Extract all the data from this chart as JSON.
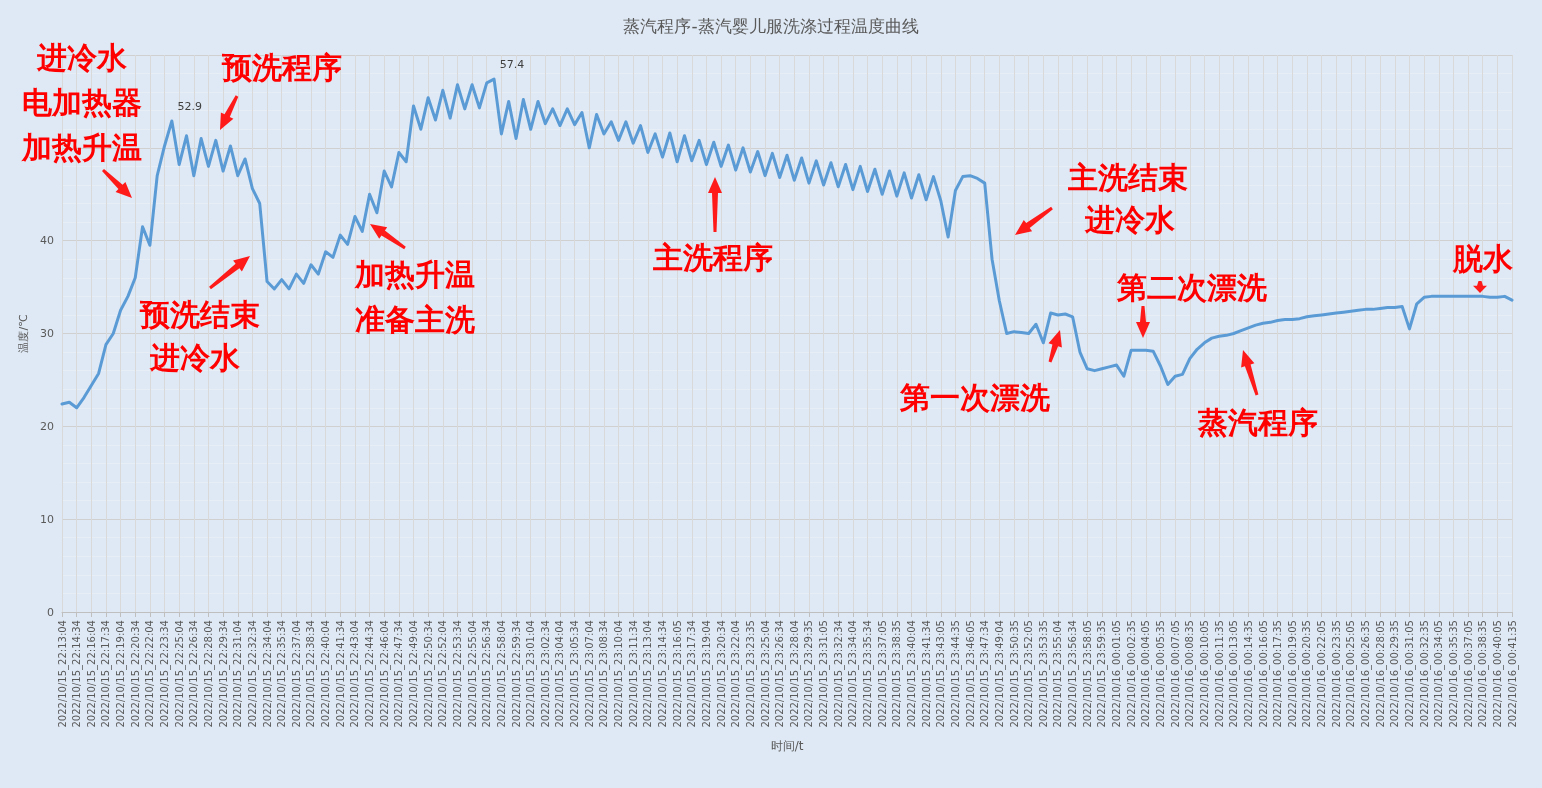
{
  "chart_data": {
    "type": "line",
    "title": "蒸汽程序-蒸汽婴儿服洗涤过程温度曲线",
    "xlabel": "时间/t",
    "ylabel": "温度/℃",
    "categories": [
      "2022/10/15_22:13:04",
      null,
      "2022/10/15_22:14:34",
      null,
      "2022/10/15_22:16:04",
      null,
      "2022/10/15_22:17:34",
      null,
      "2022/10/15_22:19:04",
      null,
      "2022/10/15_22:20:34",
      null,
      "2022/10/15_22:22:04",
      null,
      "2022/10/15_22:23:34",
      null,
      "2022/10/15_22:25:04",
      null,
      "2022/10/15_22:26:34",
      null,
      "2022/10/15_22:28:04",
      null,
      "2022/10/15_22:29:34",
      null,
      "2022/10/15_22:31:04",
      null,
      "2022/10/15_22:32:34",
      null,
      "2022/10/15_22:34:04",
      null,
      "2022/10/15_22:35:34",
      null,
      "2022/10/15_22:37:04",
      null,
      "2022/10/15_22:38:34",
      null,
      "2022/10/15_22:40:04",
      null,
      "2022/10/15_22:41:34",
      null,
      "2022/10/15_22:43:04",
      null,
      "2022/10/15_22:44:34",
      null,
      "2022/10/15_22:46:04",
      null,
      "2022/10/15_22:47:34",
      null,
      "2022/10/15_22:49:04",
      null,
      "2022/10/15_22:50:34",
      null,
      "2022/10/15_22:52:04",
      null,
      "2022/10/15_22:53:34",
      null,
      "2022/10/15_22:55:04",
      null,
      "2022/10/15_22:56:34",
      null,
      "2022/10/15_22:58:04",
      null,
      "2022/10/15_22:59:34",
      null,
      "2022/10/15_23:01:04",
      null,
      "2022/10/15_23:02:34",
      null,
      "2022/10/15_23:04:04",
      null,
      "2022/10/15_23:05:34",
      null,
      "2022/10/15_23:07:04",
      null,
      "2022/10/15_23:08:34",
      null,
      "2022/10/15_23:10:04",
      null,
      "2022/10/15_23:11:34",
      null,
      "2022/10/15_23:13:04",
      null,
      "2022/10/15_23:14:34",
      null,
      "2022/10/15_23:16:05",
      null,
      "2022/10/15_23:17:34",
      null,
      "2022/10/15_23:19:04",
      null,
      "2022/10/15_23:20:34",
      null,
      "2022/10/15_23:22:04",
      null,
      "2022/10/15_23:23:35",
      null,
      "2022/10/15_23:25:04",
      null,
      "2022/10/15_23:26:34",
      null,
      "2022/10/15_23:28:04",
      null,
      "2022/10/15_23:29:35",
      null,
      "2022/10/15_23:31:05",
      null,
      "2022/10/15_23:32:34",
      null,
      "2022/10/15_23:34:04",
      null,
      "2022/10/15_23:35:34",
      null,
      "2022/10/15_23:37:05",
      null,
      "2022/10/15_23:38:35",
      null,
      "2022/10/15_23:40:04",
      null,
      "2022/10/15_23:41:34",
      null,
      "2022/10/15_23:43:05",
      null,
      "2022/10/15_23:44:35",
      null,
      "2022/10/15_23:46:05",
      null,
      "2022/10/15_23:47:34",
      null,
      "2022/10/15_23:49:04",
      null,
      "2022/10/15_23:50:35",
      null,
      "2022/10/15_23:52:05",
      null,
      "2022/10/15_23:53:35",
      null,
      "2022/10/15_23:55:04",
      null,
      "2022/10/15_23:56:34",
      null,
      "2022/10/15_23:58:05",
      null,
      "2022/10/15_23:59:35",
      null,
      "2022/10/16_00:01:05",
      null,
      "2022/10/16_00:02:35",
      null,
      "2022/10/16_00:04:05",
      null,
      "2022/10/16_00:05:35",
      null,
      "2022/10/16_00:07:05",
      null,
      "2022/10/16_00:08:35",
      null,
      "2022/10/16_00:10:05",
      null,
      "2022/10/16_00:11:35",
      null,
      "2022/10/16_00:13:05",
      null,
      "2022/10/16_00:14:35",
      null,
      "2022/10/16_00:16:05",
      null,
      "2022/10/16_00:17:35",
      null,
      "2022/10/16_00:19:05",
      null,
      "2022/10/16_00:20:35",
      null,
      "2022/10/16_00:22:05",
      null,
      "2022/10/16_00:23:35",
      null,
      "2022/10/16_00:25:05",
      null,
      "2022/10/16_00:26:35",
      null,
      "2022/10/16_00:28:05",
      null,
      "2022/10/16_00:29:35",
      null,
      "2022/10/16_00:31:05",
      null,
      "2022/10/16_00:32:35",
      null,
      "2022/10/16_00:34:05",
      null,
      "2022/10/16_00:35:35",
      null,
      "2022/10/16_00:37:05",
      null,
      "2022/10/16_00:38:35",
      null,
      "2022/10/16_00:40:05",
      null,
      "2022/10/16_00:41:35"
    ],
    "series": [
      {
        "color": "#5b9bd5",
        "values": [
          22.4,
          22.6,
          22.0,
          23.1,
          24.4,
          25.7,
          28.8,
          30.0,
          32.5,
          34.0,
          36.0,
          41.5,
          39.5,
          47.0,
          50.2,
          52.9,
          48.2,
          51.3,
          47.0,
          51.0,
          48.0,
          50.8,
          47.5,
          50.2,
          47.0,
          48.8,
          45.6,
          44.0,
          35.6,
          34.8,
          35.8,
          34.8,
          36.4,
          35.4,
          37.4,
          36.4,
          38.8,
          38.2,
          40.6,
          39.6,
          42.6,
          41.0,
          45.0,
          43.0,
          47.5,
          45.8,
          49.5,
          48.5,
          54.5,
          52.0,
          55.4,
          53.0,
          56.2,
          53.2,
          56.8,
          54.2,
          56.8,
          54.3,
          57.0,
          57.4,
          51.5,
          55.0,
          51.0,
          55.2,
          52.0,
          55.0,
          52.6,
          54.2,
          52.4,
          54.2,
          52.5,
          53.8,
          50.0,
          53.6,
          51.5,
          52.8,
          50.8,
          52.8,
          50.5,
          52.4,
          49.5,
          51.5,
          49.0,
          51.6,
          48.5,
          51.3,
          48.6,
          50.8,
          48.2,
          50.6,
          48.0,
          50.3,
          47.6,
          50.0,
          47.4,
          49.6,
          47.0,
          49.4,
          46.8,
          49.2,
          46.5,
          48.9,
          46.2,
          48.6,
          46.0,
          48.4,
          45.8,
          48.2,
          45.5,
          48.0,
          45.3,
          47.7,
          45.0,
          47.5,
          44.8,
          47.3,
          44.6,
          47.1,
          44.4,
          46.9,
          44.3,
          40.4,
          45.4,
          46.9,
          47.0,
          46.7,
          46.2,
          38.0,
          33.5,
          30.0,
          30.2,
          30.1,
          30.0,
          31.0,
          29.0,
          32.2,
          32.0,
          32.1,
          31.8,
          28.0,
          26.2,
          26.0,
          26.2,
          26.4,
          26.6,
          25.4,
          28.2,
          28.2,
          28.2,
          28.1,
          26.5,
          24.5,
          25.4,
          25.6,
          27.3,
          28.3,
          29.0,
          29.5,
          29.7,
          29.8,
          30.0,
          30.3,
          30.6,
          30.9,
          31.1,
          31.2,
          31.4,
          31.5,
          31.5,
          31.6,
          31.8,
          31.9,
          32.0,
          32.1,
          32.2,
          32.3,
          32.4,
          32.5,
          32.6,
          32.6,
          32.7,
          32.8,
          32.8,
          32.9,
          30.5,
          33.2,
          33.9,
          34.0,
          34.0,
          34.0,
          34.0,
          34.0,
          34.0,
          34.0,
          34.0,
          33.9,
          33.9,
          34.0,
          33.6
        ],
        "value_labels": [
          null,
          null,
          null,
          null,
          null,
          null,
          null,
          null,
          null,
          null,
          null,
          null,
          null,
          null,
          null,
          "52.9",
          null,
          null,
          null,
          null,
          null,
          null,
          null,
          null,
          null,
          null,
          null,
          null,
          null,
          null,
          null,
          null,
          null,
          null,
          null,
          null,
          null,
          null,
          null,
          null,
          null,
          null,
          null,
          null,
          null,
          null,
          null,
          null,
          null,
          null,
          null,
          null,
          null,
          null,
          null,
          null,
          null,
          null,
          null,
          "57.4",
          null,
          null,
          null,
          null,
          null,
          null,
          null,
          null,
          null,
          null,
          null,
          null,
          null,
          null,
          null,
          null,
          null,
          null,
          null,
          null,
          null,
          null,
          null,
          null,
          null,
          null,
          null,
          null,
          null,
          null,
          null,
          null,
          null,
          null,
          null,
          null,
          null,
          null,
          null,
          null,
          null,
          null,
          null,
          null,
          null,
          null,
          null,
          null,
          null,
          null,
          null,
          null,
          null,
          null,
          null,
          null,
          null,
          null,
          null,
          null,
          null,
          null,
          null,
          null,
          null,
          null,
          null,
          null,
          null,
          null,
          null,
          null,
          null,
          null,
          null,
          null,
          null,
          null,
          null,
          null,
          null,
          null,
          null,
          null,
          null,
          null,
          null,
          null,
          null,
          null,
          null,
          null,
          null,
          null,
          null,
          null,
          null,
          null,
          null,
          null,
          null,
          null,
          null,
          null,
          null,
          null,
          null,
          null,
          null,
          null,
          null,
          null,
          null,
          null,
          null,
          null,
          null,
          null,
          null,
          null,
          null,
          null,
          null,
          null,
          null,
          null,
          null,
          null,
          null,
          null,
          null,
          null,
          null,
          null,
          null,
          null,
          null,
          null,
          null
        ]
      }
    ],
    "ylim": [
      0,
      60
    ],
    "yticks": [
      0,
      10,
      20,
      30,
      40,
      {
        "value": 50,
        "label": null
      },
      {
        "value": 60,
        "label": null
      }
    ],
    "grid": true,
    "marker": "none",
    "line_style": "solid",
    "annotations": [
      "进冷水",
      "电加热器",
      "加热升温",
      "预洗程序",
      "预洗结束",
      "进冷水",
      "加热升温",
      "准备主洗",
      "主洗程序",
      "主洗结束",
      "进冷水",
      "第一次漂洗",
      "第二次漂洗",
      "蒸汽程序",
      "脱水"
    ]
  }
}
